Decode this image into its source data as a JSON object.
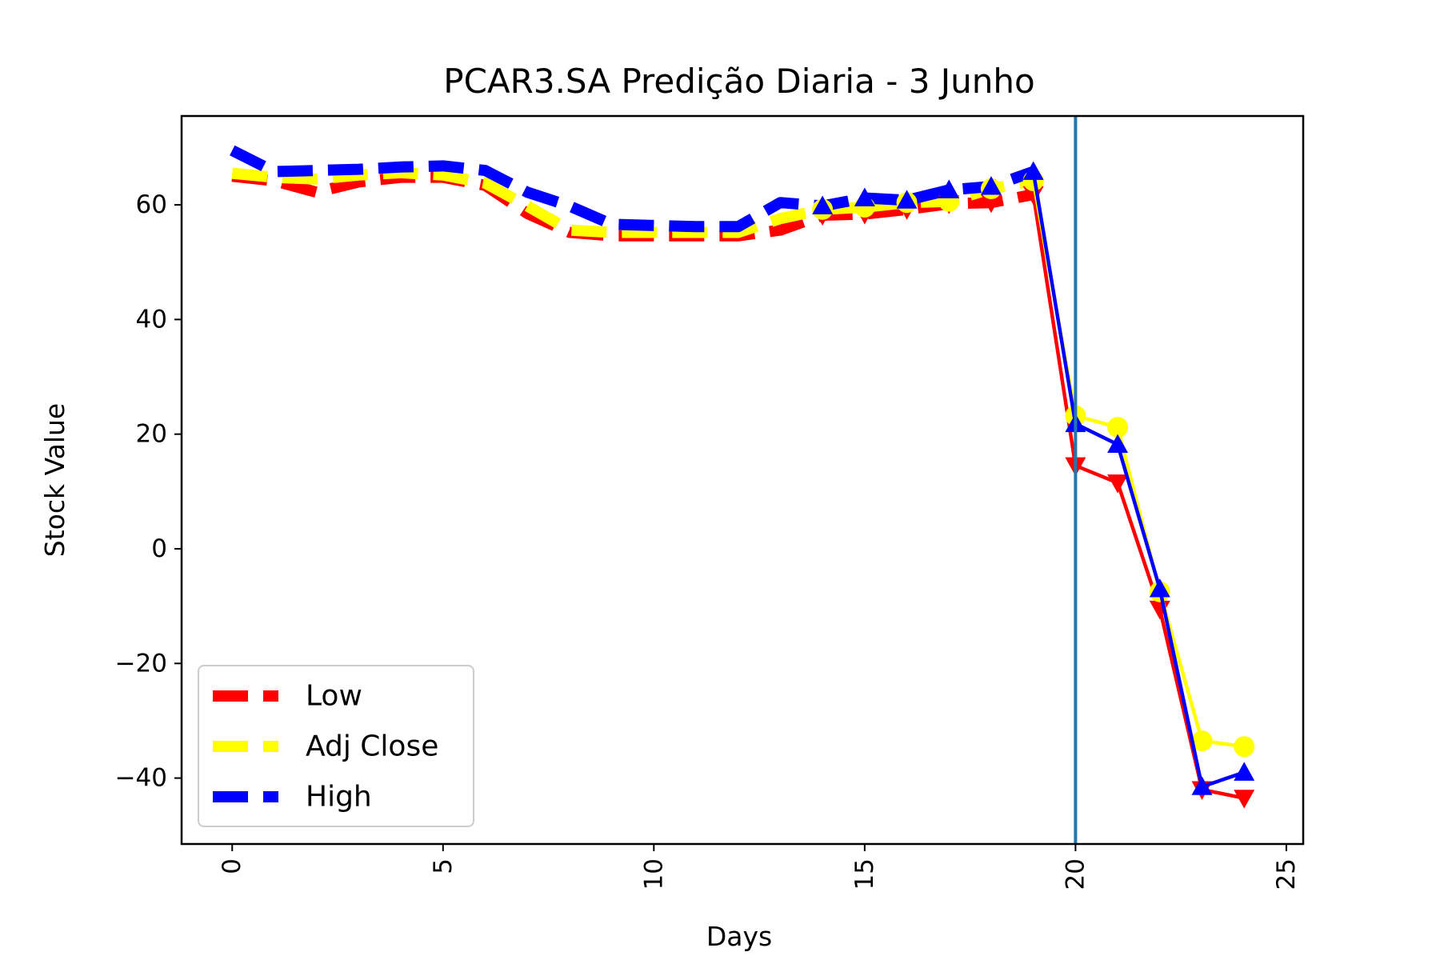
{
  "chart_data": {
    "type": "line",
    "title": "PCAR3.SA Predição Diaria - 3 Junho",
    "xlabel": "Days",
    "ylabel": "Stock Value",
    "xlim": [
      -1.2,
      25.4
    ],
    "ylim": [
      -51.5,
      75.5
    ],
    "xticks": [
      0,
      5,
      10,
      15,
      20,
      25
    ],
    "xtick_labels": [
      "0",
      "5",
      "10",
      "15",
      "20",
      "25"
    ],
    "xtick_rotation": 90,
    "yticks": [
      -40,
      -20,
      0,
      20,
      40,
      60
    ],
    "ytick_labels": [
      "−40",
      "−20",
      "0",
      "20",
      "40",
      "60"
    ],
    "grid": false,
    "legend_position": "lower-left",
    "vertical_line": {
      "x": 20,
      "color": "#1f77b4"
    },
    "series": [
      {
        "name": "Low",
        "color": "#ff0000",
        "historical_x": [
          0,
          1,
          2,
          3,
          4,
          5,
          6,
          7,
          8,
          9,
          10,
          11,
          12,
          13,
          14,
          15,
          16,
          17,
          18,
          19
        ],
        "historical_y": [
          65.0,
          64.2,
          62.2,
          64.0,
          64.8,
          64.8,
          63.4,
          58.5,
          55.2,
          54.6,
          54.6,
          54.6,
          54.6,
          55.6,
          58.2,
          58.4,
          59.2,
          60.2,
          60.4,
          61.8
        ],
        "predicted_x": [
          20,
          21,
          22,
          23,
          24
        ],
        "predicted_y": [
          14.5,
          11.5,
          -10.5,
          -42.0,
          -43.5
        ],
        "marker": "triangle-down"
      },
      {
        "name": "Adj Close",
        "color": "#ffff00",
        "historical_x": [
          0,
          1,
          2,
          3,
          4,
          5,
          6,
          7,
          8,
          9,
          10,
          11,
          12,
          13,
          14,
          15,
          16,
          17,
          18,
          19
        ],
        "historical_y": [
          65.5,
          64.8,
          64.5,
          65.2,
          65.6,
          65.2,
          63.8,
          59.8,
          55.6,
          55.2,
          55.2,
          55.2,
          55.2,
          57.6,
          59.2,
          59.6,
          60.4,
          60.6,
          62.8,
          64.2
        ],
        "predicted_x": [
          20,
          21,
          22,
          23,
          24
        ],
        "predicted_y": [
          23.2,
          21.2,
          -7.5,
          -33.5,
          -34.5
        ],
        "marker": "circle"
      },
      {
        "name": "High",
        "color": "#0000ff",
        "historical_x": [
          0,
          1,
          2,
          3,
          4,
          5,
          6,
          7,
          8,
          9,
          10,
          11,
          12,
          13,
          14,
          15,
          16,
          17,
          18,
          19
        ],
        "historical_y": [
          69.5,
          65.8,
          66.0,
          66.2,
          66.6,
          66.8,
          66.0,
          62.2,
          59.8,
          56.6,
          56.4,
          56.2,
          56.2,
          60.4,
          59.8,
          61.2,
          60.8,
          62.6,
          63.2,
          65.8
        ],
        "predicted_x": [
          20,
          21,
          22,
          23,
          24
        ],
        "predicted_y": [
          21.8,
          18.2,
          -7.0,
          -41.5,
          -39.0
        ],
        "marker": "triangle-up"
      }
    ]
  }
}
